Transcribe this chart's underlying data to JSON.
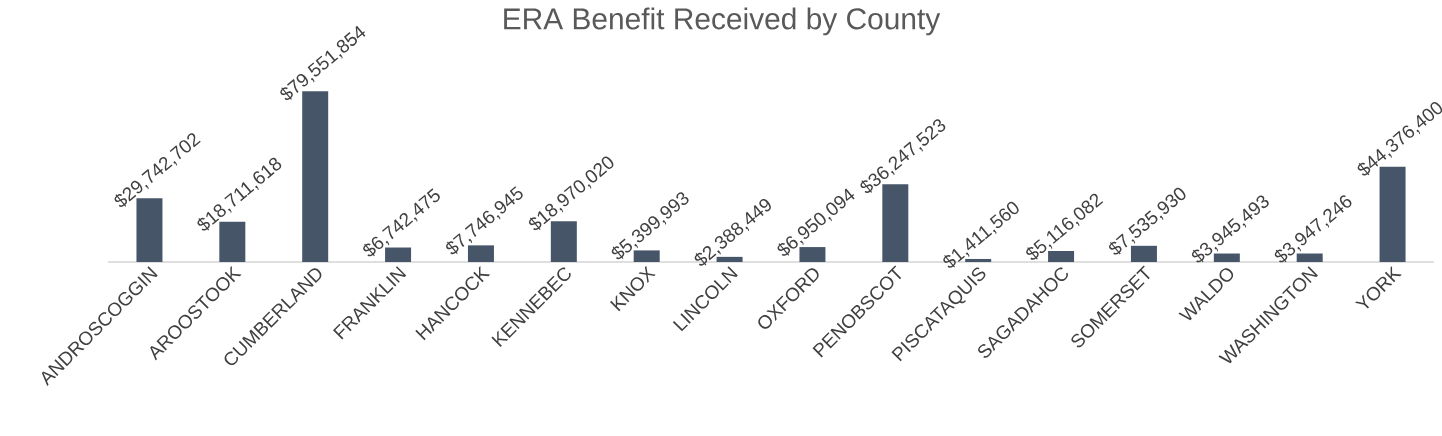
{
  "chart_data": {
    "type": "bar",
    "title": "ERA Benefit Received by County",
    "categories": [
      "ANDROSCOGGIN",
      "AROOSTOOK",
      "CUMBERLAND",
      "FRANKLIN",
      "HANCOCK",
      "KENNEBEC",
      "KNOX",
      "LINCOLN",
      "OXFORD",
      "PENOBSCOT",
      "PISCATAQUIS",
      "SAGADAHOC",
      "SOMERSET",
      "WALDO",
      "WASHINGTON",
      "YORK"
    ],
    "values": [
      29742702,
      18711618,
      79551854,
      6742475,
      7746945,
      18970020,
      5399993,
      2388449,
      6950094,
      36247523,
      1411560,
      5116082,
      7535930,
      3945493,
      3947246,
      44376400
    ],
    "value_labels": [
      "$29,742,702",
      "$18,711,618",
      "$79,551,854",
      "$6,742,475",
      "$7,746,945",
      "$18,970,020",
      "$5,399,993",
      "$2,388,449",
      "$6,950,094",
      "$36,247,523",
      "$1,411,560",
      "$5,116,082",
      "$7,535,930",
      "$3,945,493",
      "$3,947,246",
      "$44,376,400"
    ],
    "color": "#475569"
  }
}
